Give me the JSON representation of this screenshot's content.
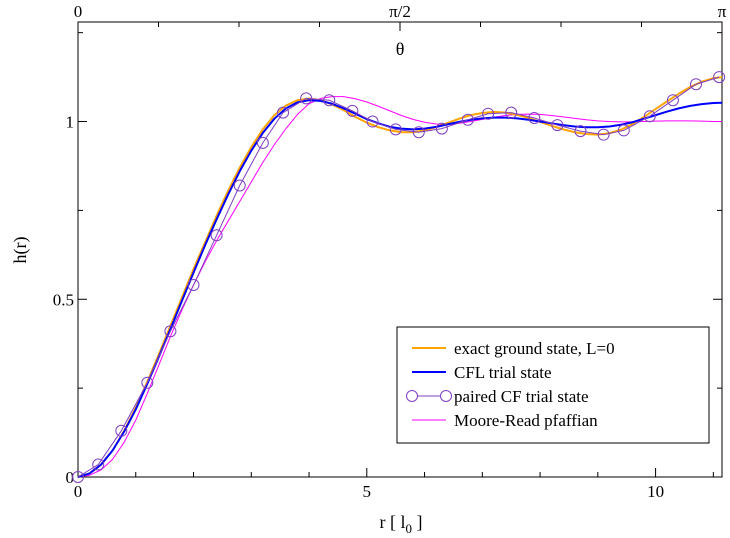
{
  "chart_data": {
    "type": "line",
    "xlabel_main": "r [ l",
    "xlabel_sub": "0",
    "xlabel_end": " ]",
    "ylabel": "h(r)",
    "top_axis_label": "θ",
    "xlim": [
      0,
      11.15
    ],
    "ylim": [
      0,
      1.28
    ],
    "x_ticks": [
      {
        "value": 0,
        "label": "0"
      },
      {
        "value": 5,
        "label": "5"
      },
      {
        "value": 10,
        "label": "10"
      }
    ],
    "y_ticks": [
      {
        "value": 0,
        "label": "0"
      },
      {
        "value": 0.5,
        "label": "0.5"
      },
      {
        "value": 1,
        "label": "1"
      }
    ],
    "top_ticks": [
      {
        "value": 0,
        "label": "0"
      },
      {
        "value": 5.575,
        "label": "π/2"
      },
      {
        "value": 11.15,
        "label": "π"
      }
    ],
    "legend_position": "bottom-right",
    "series": [
      {
        "name": "exact ground state, L=0",
        "color": "#ffa500",
        "style": "line",
        "points": [
          [
            0,
            0
          ],
          [
            0.2,
            0.01
          ],
          [
            0.4,
            0.035
          ],
          [
            0.6,
            0.075
          ],
          [
            0.8,
            0.13
          ],
          [
            1.0,
            0.195
          ],
          [
            1.2,
            0.268
          ],
          [
            1.4,
            0.345
          ],
          [
            1.6,
            0.425
          ],
          [
            1.8,
            0.505
          ],
          [
            2.0,
            0.585
          ],
          [
            2.2,
            0.66
          ],
          [
            2.4,
            0.735
          ],
          [
            2.6,
            0.805
          ],
          [
            2.8,
            0.87
          ],
          [
            3.0,
            0.928
          ],
          [
            3.2,
            0.978
          ],
          [
            3.4,
            1.018
          ],
          [
            3.6,
            1.045
          ],
          [
            3.8,
            1.06
          ],
          [
            4.0,
            1.065
          ],
          [
            4.2,
            1.06
          ],
          [
            4.4,
            1.048
          ],
          [
            4.6,
            1.032
          ],
          [
            4.8,
            1.013
          ],
          [
            5.0,
            0.997
          ],
          [
            5.2,
            0.984
          ],
          [
            5.4,
            0.975
          ],
          [
            5.6,
            0.97
          ],
          [
            5.8,
            0.97
          ],
          [
            6.0,
            0.975
          ],
          [
            6.2,
            0.984
          ],
          [
            6.4,
            0.996
          ],
          [
            6.6,
            1.008
          ],
          [
            6.8,
            1.018
          ],
          [
            7.0,
            1.024
          ],
          [
            7.2,
            1.027
          ],
          [
            7.4,
            1.025
          ],
          [
            7.6,
            1.019
          ],
          [
            7.8,
            1.01
          ],
          [
            8.0,
            0.999
          ],
          [
            8.2,
            0.988
          ],
          [
            8.4,
            0.978
          ],
          [
            8.6,
            0.97
          ],
          [
            8.8,
            0.965
          ],
          [
            9.0,
            0.963
          ],
          [
            9.2,
            0.967
          ],
          [
            9.4,
            0.977
          ],
          [
            9.6,
            0.993
          ],
          [
            9.8,
            1.013
          ],
          [
            10.0,
            1.035
          ],
          [
            10.2,
            1.057
          ],
          [
            10.4,
            1.078
          ],
          [
            10.6,
            1.097
          ],
          [
            10.8,
            1.112
          ],
          [
            11.0,
            1.122
          ],
          [
            11.15,
            1.125
          ]
        ]
      },
      {
        "name": "CFL trial state",
        "color": "#0000ff",
        "style": "line",
        "points": [
          [
            0,
            0
          ],
          [
            0.2,
            0.01
          ],
          [
            0.4,
            0.035
          ],
          [
            0.6,
            0.075
          ],
          [
            0.8,
            0.128
          ],
          [
            1.0,
            0.19
          ],
          [
            1.2,
            0.262
          ],
          [
            1.4,
            0.338
          ],
          [
            1.6,
            0.416
          ],
          [
            1.8,
            0.496
          ],
          [
            2.0,
            0.575
          ],
          [
            2.2,
            0.652
          ],
          [
            2.4,
            0.725
          ],
          [
            2.6,
            0.795
          ],
          [
            2.8,
            0.86
          ],
          [
            3.0,
            0.918
          ],
          [
            3.2,
            0.968
          ],
          [
            3.4,
            1.008
          ],
          [
            3.6,
            1.037
          ],
          [
            3.8,
            1.054
          ],
          [
            4.0,
            1.06
          ],
          [
            4.2,
            1.058
          ],
          [
            4.4,
            1.05
          ],
          [
            4.6,
            1.037
          ],
          [
            4.8,
            1.022
          ],
          [
            5.0,
            1.007
          ],
          [
            5.2,
            0.995
          ],
          [
            5.4,
            0.985
          ],
          [
            5.6,
            0.98
          ],
          [
            5.8,
            0.978
          ],
          [
            6.0,
            0.98
          ],
          [
            6.2,
            0.985
          ],
          [
            6.4,
            0.992
          ],
          [
            6.6,
            0.999
          ],
          [
            6.8,
            1.005
          ],
          [
            7.0,
            1.009
          ],
          [
            7.2,
            1.011
          ],
          [
            7.4,
            1.011
          ],
          [
            7.6,
            1.009
          ],
          [
            7.8,
            1.005
          ],
          [
            8.0,
            1.0
          ],
          [
            8.2,
            0.995
          ],
          [
            8.4,
            0.99
          ],
          [
            8.6,
            0.986
          ],
          [
            8.8,
            0.984
          ],
          [
            9.0,
            0.984
          ],
          [
            9.2,
            0.986
          ],
          [
            9.4,
            0.991
          ],
          [
            9.6,
            0.998
          ],
          [
            9.8,
            1.008
          ],
          [
            10.0,
            1.018
          ],
          [
            10.2,
            1.028
          ],
          [
            10.4,
            1.037
          ],
          [
            10.6,
            1.044
          ],
          [
            10.8,
            1.049
          ],
          [
            11.0,
            1.052
          ],
          [
            11.15,
            1.053
          ]
        ]
      },
      {
        "name": "paired CF trial state",
        "color": "#7f3fbf",
        "style": "line+circle",
        "points": [
          [
            0,
            0
          ],
          [
            0.35,
            0.035
          ],
          [
            0.75,
            0.13
          ],
          [
            1.2,
            0.265
          ],
          [
            1.6,
            0.41
          ],
          [
            2.0,
            0.54
          ],
          [
            2.4,
            0.68
          ],
          [
            2.8,
            0.82
          ],
          [
            3.2,
            0.94
          ],
          [
            3.55,
            1.025
          ],
          [
            3.95,
            1.065
          ],
          [
            4.35,
            1.06
          ],
          [
            4.75,
            1.03
          ],
          [
            5.1,
            1.0
          ],
          [
            5.5,
            0.978
          ],
          [
            5.9,
            0.97
          ],
          [
            6.3,
            0.98
          ],
          [
            6.75,
            1.005
          ],
          [
            7.1,
            1.022
          ],
          [
            7.5,
            1.025
          ],
          [
            7.9,
            1.01
          ],
          [
            8.3,
            0.99
          ],
          [
            8.7,
            0.973
          ],
          [
            9.1,
            0.963
          ],
          [
            9.45,
            0.975
          ],
          [
            9.9,
            1.015
          ],
          [
            10.3,
            1.06
          ],
          [
            10.7,
            1.105
          ],
          [
            11.1,
            1.125
          ]
        ]
      },
      {
        "name": "Moore-Read pfaffian",
        "color": "#ff00ff",
        "style": "thin-line",
        "points": [
          [
            0,
            0
          ],
          [
            0.2,
            0.005
          ],
          [
            0.4,
            0.02
          ],
          [
            0.6,
            0.05
          ],
          [
            0.8,
            0.098
          ],
          [
            1.0,
            0.16
          ],
          [
            1.2,
            0.235
          ],
          [
            1.4,
            0.315
          ],
          [
            1.6,
            0.395
          ],
          [
            1.8,
            0.47
          ],
          [
            2.0,
            0.54
          ],
          [
            2.2,
            0.605
          ],
          [
            2.4,
            0.665
          ],
          [
            2.6,
            0.72
          ],
          [
            2.8,
            0.775
          ],
          [
            3.0,
            0.83
          ],
          [
            3.2,
            0.885
          ],
          [
            3.4,
            0.935
          ],
          [
            3.6,
            0.98
          ],
          [
            3.8,
            1.02
          ],
          [
            4.0,
            1.05
          ],
          [
            4.2,
            1.065
          ],
          [
            4.4,
            1.07
          ],
          [
            4.6,
            1.07
          ],
          [
            4.8,
            1.064
          ],
          [
            5.0,
            1.055
          ],
          [
            5.2,
            1.043
          ],
          [
            5.4,
            1.03
          ],
          [
            5.6,
            1.017
          ],
          [
            5.8,
            1.006
          ],
          [
            6.0,
            0.998
          ],
          [
            6.2,
            0.993
          ],
          [
            6.4,
            0.992
          ],
          [
            6.6,
            0.995
          ],
          [
            6.8,
            1.0
          ],
          [
            7.0,
            1.006
          ],
          [
            7.2,
            1.012
          ],
          [
            7.4,
            1.017
          ],
          [
            7.6,
            1.02
          ],
          [
            7.8,
            1.021
          ],
          [
            8.0,
            1.02
          ],
          [
            8.2,
            1.017
          ],
          [
            8.4,
            1.013
          ],
          [
            8.6,
            1.009
          ],
          [
            8.8,
            1.005
          ],
          [
            9.0,
            1.002
          ],
          [
            9.2,
            1.0
          ],
          [
            9.4,
            0.999
          ],
          [
            9.6,
            0.999
          ],
          [
            9.8,
            1.0
          ],
          [
            10.0,
            1.001
          ],
          [
            10.2,
            1.002
          ],
          [
            10.4,
            1.002
          ],
          [
            10.6,
            1.002
          ],
          [
            10.8,
            1.001
          ],
          [
            11.0,
            1.0
          ],
          [
            11.15,
            1.0
          ]
        ]
      }
    ]
  }
}
